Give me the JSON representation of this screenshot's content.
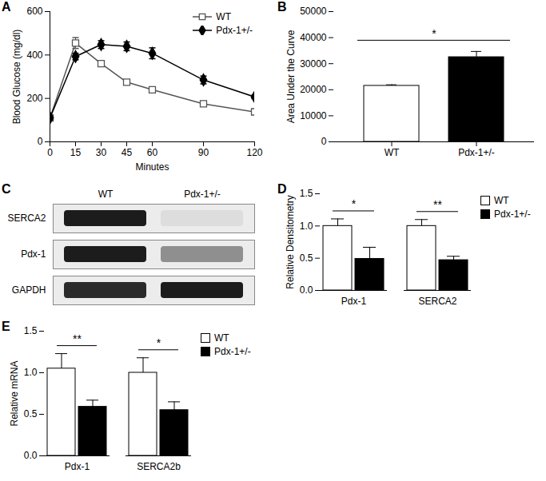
{
  "chart_data": [
    {
      "type": "line",
      "title": "A",
      "x_label": "Minutes",
      "y_label": "Blood Glucose (mg/dl)",
      "x": [
        0,
        15,
        30,
        45,
        60,
        90,
        120
      ],
      "xlim": [
        0,
        120
      ],
      "xticks": [
        0,
        15,
        30,
        45,
        60,
        90,
        120
      ],
      "ylim": [
        0,
        600
      ],
      "yticks": [
        0,
        200,
        400,
        600
      ],
      "legend": "top-right",
      "series": [
        {
          "name": "WT",
          "color": "#555555",
          "marker": "square-open",
          "values": [
            110,
            455,
            360,
            275,
            240,
            175,
            138
          ],
          "errors": [
            8,
            25,
            10,
            10,
            10,
            10,
            10
          ]
        },
        {
          "name": "Pdx-1+/-",
          "color": "#000000",
          "marker": "diamond",
          "values": [
            110,
            393,
            448,
            440,
            408,
            285,
            207
          ],
          "errors": [
            8,
            15,
            18,
            20,
            25,
            18,
            8
          ]
        }
      ]
    },
    {
      "type": "bar",
      "title": "B",
      "y_label": "Area Under the Curve",
      "categories": [
        "WT",
        "Pdx-1+/-"
      ],
      "values": [
        21500,
        32500
      ],
      "errors": [
        400,
        2200
      ],
      "colors": [
        "#ffffff",
        "#000000"
      ],
      "ylim": [
        0,
        50000
      ],
      "yticks": [
        0,
        10000,
        20000,
        30000,
        40000,
        50000
      ],
      "significance": "*"
    },
    {
      "type": "blot",
      "title": "C",
      "categories": [
        "WT",
        "Pdx-1+/-"
      ],
      "series": [
        {
          "name": "SERCA2",
          "values": [
            0.95,
            0.15
          ]
        },
        {
          "name": "Pdx-1",
          "values": [
            0.95,
            0.5
          ]
        },
        {
          "name": "GAPDH",
          "values": [
            0.9,
            0.95
          ]
        }
      ]
    },
    {
      "type": "bar",
      "title": "D",
      "y_label": "Relative Densitometry",
      "categories": [
        "Pdx-1",
        "SERCA2"
      ],
      "series": [
        {
          "name": "WT",
          "color": "#ffffff",
          "values": [
            1.0,
            1.0
          ],
          "errors": [
            0.11,
            0.1
          ]
        },
        {
          "name": "Pdx-1+/-",
          "color": "#000000",
          "values": [
            0.49,
            0.47
          ],
          "errors": [
            0.18,
            0.06
          ]
        }
      ],
      "ylim": [
        0,
        1.5
      ],
      "yticks": [
        {
          "value": 0,
          "label": "0.0"
        },
        0.5,
        {
          "value": 1,
          "label": "1.0"
        },
        1.5
      ],
      "significance": [
        "*",
        "**"
      ],
      "legend": "right"
    },
    {
      "type": "bar",
      "title": "E",
      "y_label": "Relative mRNA",
      "categories": [
        "Pdx-1",
        "SERCA2b"
      ],
      "series": [
        {
          "name": "WT",
          "color": "#ffffff",
          "values": [
            1.05,
            1.0
          ],
          "errors": [
            0.18,
            0.18
          ]
        },
        {
          "name": "Pdx-1+/-",
          "color": "#000000",
          "values": [
            0.59,
            0.55
          ],
          "errors": [
            0.08,
            0.1
          ]
        }
      ],
      "ylim": [
        0,
        1.5
      ],
      "yticks": [
        {
          "value": 0,
          "label": "0.0"
        },
        0.5,
        {
          "value": 1,
          "label": "1.0"
        },
        1.5
      ],
      "significance": [
        "**",
        "*"
      ],
      "legend": "right"
    }
  ]
}
